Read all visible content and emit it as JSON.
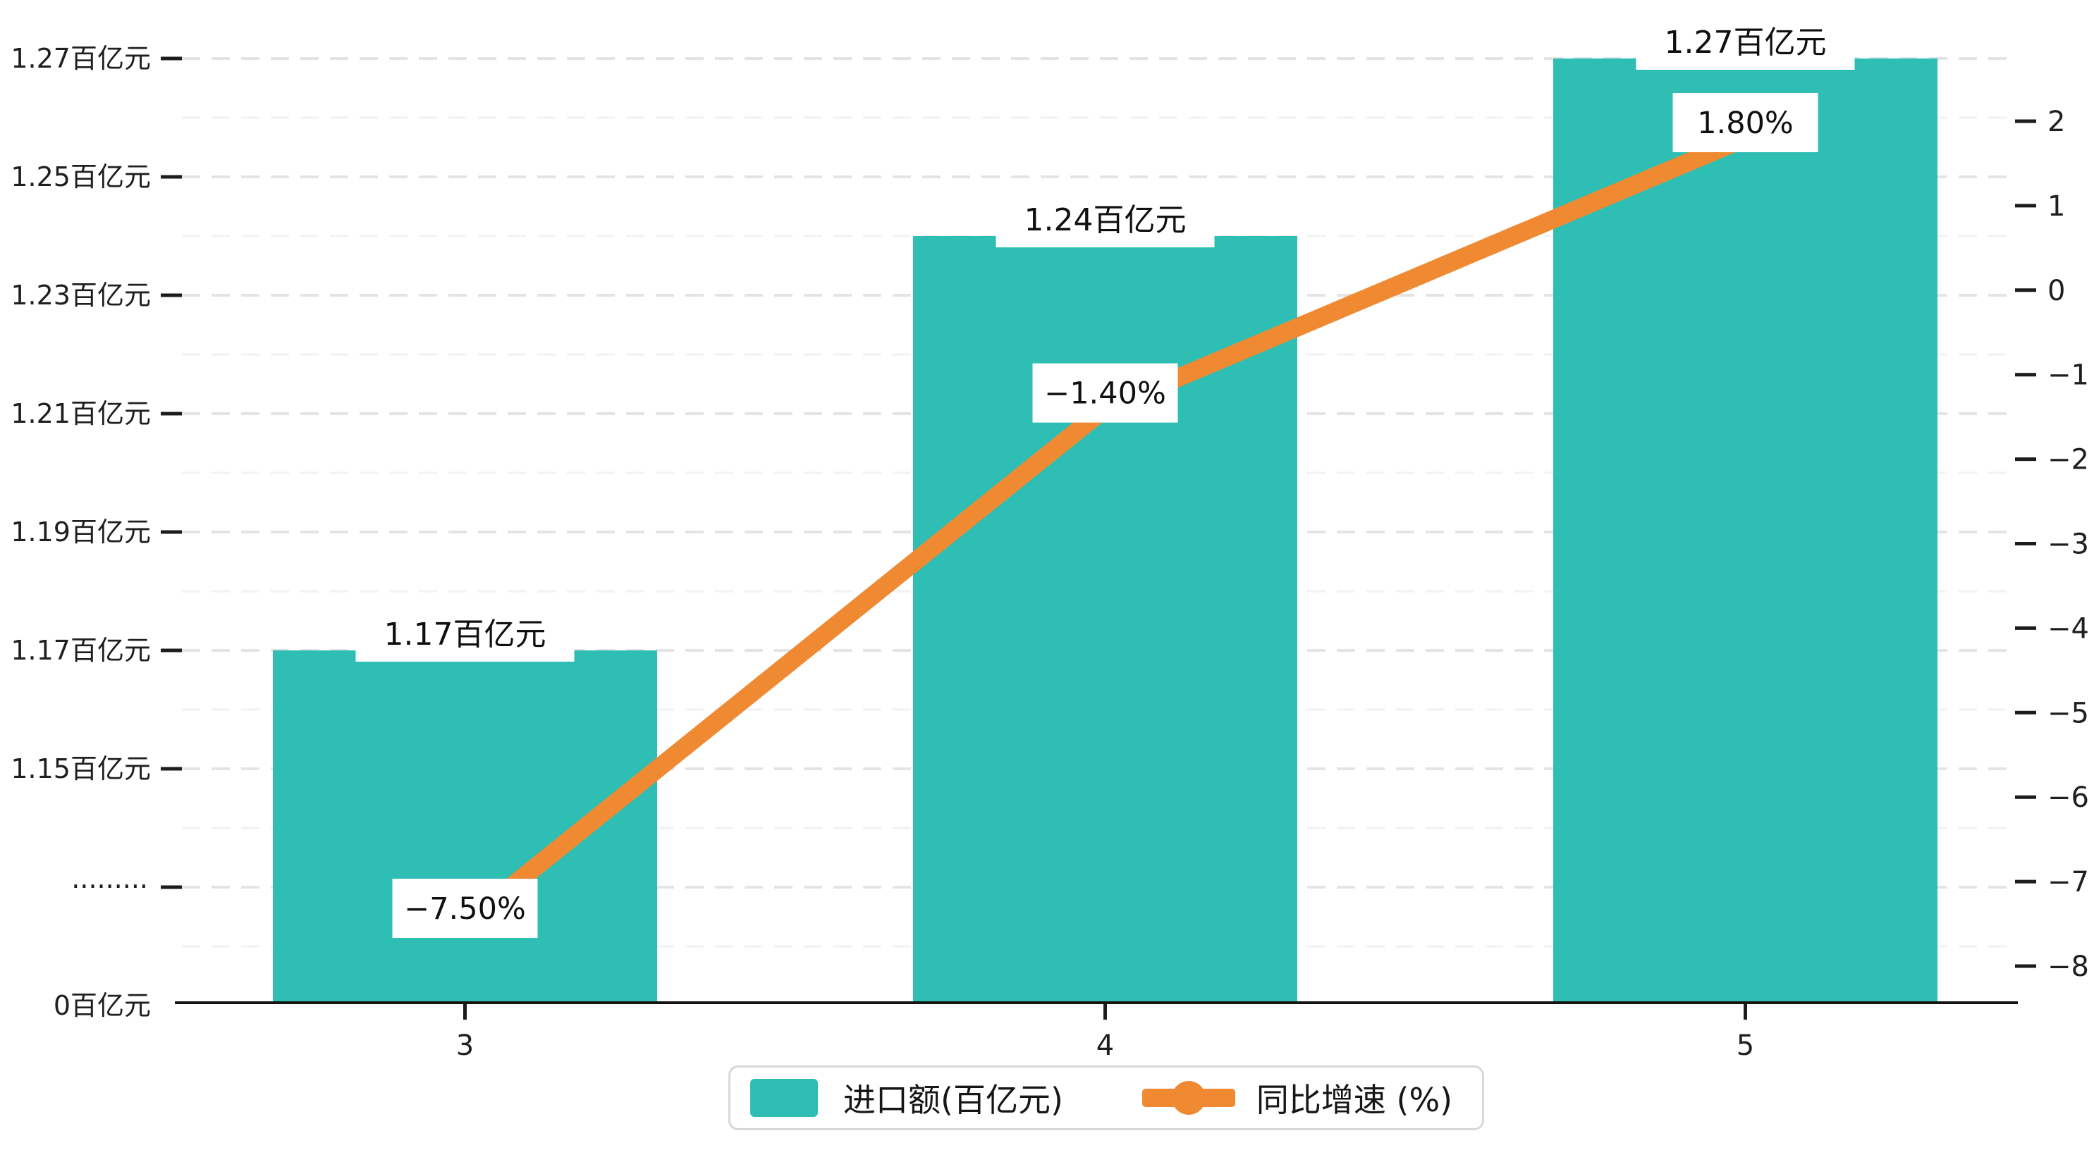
{
  "chart_data": {
    "type": "bar",
    "subtype": "bar+line dual axis, broken left axis",
    "title": "",
    "categories": [
      "3",
      "4",
      "5"
    ],
    "series": [
      {
        "name": "进口额(百亿元)",
        "type": "bar",
        "yaxis": "left",
        "values": [
          1.17,
          1.24,
          1.27
        ],
        "value_labels": [
          "1.17百亿元",
          "1.24百亿元",
          "1.27百亿元"
        ],
        "color": "#2fbeb3"
      },
      {
        "name": "同比增速 (%)",
        "type": "line",
        "yaxis": "right",
        "values": [
          -7.5,
          -1.4,
          1.8
        ],
        "value_labels": [
          "−7.50%",
          "−1.40%",
          "1.80%"
        ],
        "color": "#ef8a33"
      }
    ],
    "left_axis": {
      "unit": "百亿元",
      "tick_labels": [
        "1.27百亿元",
        "1.25百亿元",
        "1.23百亿元",
        "1.21百亿元",
        "1.19百亿元",
        "1.17百亿元",
        "1.15百亿元"
      ],
      "tick_values": [
        1.27,
        1.25,
        1.23,
        1.21,
        1.19,
        1.17,
        1.15
      ],
      "break_marker": "·········",
      "zero_label": "0百亿元",
      "tick_step": 0.02
    },
    "right_axis": {
      "tick_labels": [
        "2",
        "1",
        "0",
        "−1",
        "−2",
        "−3",
        "−4",
        "−5",
        "−6",
        "−7",
        "−8"
      ],
      "max": 2,
      "min": -8,
      "tick_step": 1
    },
    "grid": {
      "horizontal": true,
      "style": "dashed",
      "minor_lines": true
    },
    "legend_position": "bottom-center"
  },
  "legend": {
    "bar_label": "进口额(百亿元)",
    "line_label": "同比增速 (%)"
  },
  "colors": {
    "bar": "#2fbeb3",
    "line": "#ef8a33",
    "grid_major": "#e4e4e4",
    "grid_minor": "#f2f2f2",
    "axis": "#141414",
    "text": "#1f1f1f",
    "label_bg": "#ffffff",
    "legend_border": "#d8d8d8",
    "background": "#ffffff"
  }
}
